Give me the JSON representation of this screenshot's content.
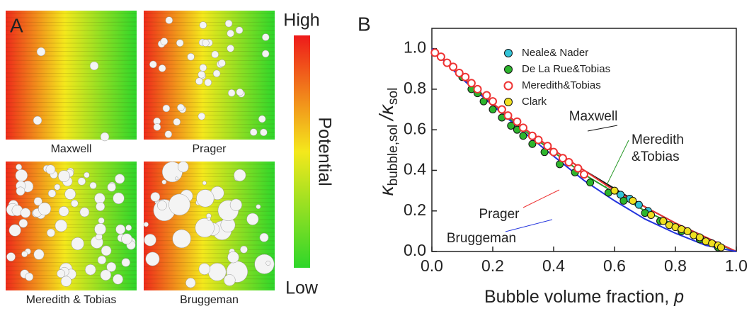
{
  "panel_a": {
    "label": "A",
    "maps": [
      "Maxwell",
      "Prager",
      "Meredith & Tobias",
      "Bruggeman"
    ],
    "colorbar": {
      "high": "High",
      "title": "Potential",
      "low": "Low"
    }
  },
  "chart_data": {
    "type": "scatter",
    "panel_label": "B",
    "xlabel": {
      "text": "Bubble volume fraction,",
      "symbol": "p"
    },
    "ylabel": {
      "symbol": "κ",
      "sub": "bubble,sol",
      "denominator": "/κ",
      "denominator_sub": "sol"
    },
    "xlim": [
      0,
      1
    ],
    "ylim": [
      0,
      1.1
    ],
    "xticks": [
      {
        "value": 0,
        "label": "0.0"
      },
      0.2,
      0.4,
      0.6,
      0.8,
      {
        "value": 1,
        "label": "1.0"
      }
    ],
    "yticks": [
      {
        "value": 0,
        "label": "0.0"
      },
      0.2,
      0.4,
      0.6,
      0.8,
      {
        "value": 1,
        "label": "1.0"
      }
    ],
    "series": [
      {
        "name": "Neale& Nader",
        "color": "#33c4d8",
        "marker": "filled",
        "x": [
          0.62,
          0.65,
          0.68,
          0.71
        ],
        "values": [
          0.28,
          0.26,
          0.23,
          0.2
        ]
      },
      {
        "name": "De La Rue&Tobias",
        "color": "#2db52d",
        "marker": "filled",
        "x": [
          0.03,
          0.07,
          0.1,
          0.13,
          0.15,
          0.17,
          0.2,
          0.23,
          0.26,
          0.28,
          0.3,
          0.33,
          0.37,
          0.42,
          0.47,
          0.52,
          0.58,
          0.63,
          0.7,
          0.75,
          0.82,
          0.88,
          0.94
        ],
        "values": [
          0.96,
          0.91,
          0.86,
          0.8,
          0.78,
          0.74,
          0.7,
          0.66,
          0.62,
          0.6,
          0.57,
          0.53,
          0.49,
          0.43,
          0.39,
          0.34,
          0.29,
          0.25,
          0.19,
          0.15,
          0.1,
          0.06,
          0.02
        ]
      },
      {
        "name": "Meredith&Tobias",
        "color": "#ee3333",
        "marker": "open",
        "x": [
          0.01,
          0.03,
          0.05,
          0.07,
          0.09,
          0.11,
          0.13,
          0.15,
          0.18,
          0.2,
          0.23,
          0.25,
          0.28,
          0.3,
          0.33,
          0.35,
          0.38,
          0.4,
          0.43,
          0.45,
          0.48,
          0.5
        ],
        "values": [
          0.98,
          0.96,
          0.93,
          0.91,
          0.88,
          0.86,
          0.83,
          0.8,
          0.77,
          0.74,
          0.7,
          0.67,
          0.64,
          0.61,
          0.57,
          0.55,
          0.52,
          0.49,
          0.46,
          0.44,
          0.41,
          0.38
        ]
      },
      {
        "name": "Clark",
        "color": "#f0e020",
        "marker": "filled",
        "x": [
          0.6,
          0.66,
          0.72,
          0.76,
          0.78,
          0.8,
          0.82,
          0.84,
          0.86,
          0.88,
          0.9,
          0.92,
          0.94,
          0.95
        ],
        "values": [
          0.3,
          0.25,
          0.18,
          0.15,
          0.13,
          0.12,
          0.11,
          0.1,
          0.08,
          0.07,
          0.05,
          0.04,
          0.03,
          0.02
        ]
      }
    ],
    "curves": [
      {
        "label": [
          "Maxwell"
        ],
        "color": "#111111",
        "x": [
          0,
          0.1,
          0.2,
          0.3,
          0.4,
          0.5,
          0.6,
          0.7,
          0.8,
          0.9,
          1
        ],
        "values": [
          1,
          0.86,
          0.73,
          0.61,
          0.5,
          0.4,
          0.31,
          0.22,
          0.14,
          0.07,
          0
        ]
      },
      {
        "label": [
          "Meredith",
          "&Tobias"
        ],
        "color": "#2a9a2a",
        "x": [
          0,
          0.1,
          0.2,
          0.3,
          0.4,
          0.5,
          0.6,
          0.7,
          0.8,
          0.9,
          1
        ],
        "values": [
          1,
          0.86,
          0.72,
          0.6,
          0.49,
          0.38,
          0.29,
          0.2,
          0.13,
          0.06,
          0
        ]
      },
      {
        "label": [
          "Prager"
        ],
        "color": "#ee3333",
        "x": [
          0,
          0.1,
          0.2,
          0.3,
          0.4,
          0.5,
          0.6,
          0.7,
          0.8,
          0.9,
          1
        ],
        "values": [
          1,
          0.86,
          0.73,
          0.61,
          0.5,
          0.4,
          0.3,
          0.22,
          0.14,
          0.07,
          0
        ]
      },
      {
        "label": [
          "Bruggeman"
        ],
        "color": "#2233dd",
        "x": [
          0,
          0.1,
          0.2,
          0.3,
          0.4,
          0.5,
          0.6,
          0.7,
          0.8,
          0.9,
          1
        ],
        "values": [
          1,
          0.85,
          0.72,
          0.59,
          0.47,
          0.35,
          0.25,
          0.16,
          0.09,
          0.03,
          0
        ]
      }
    ]
  }
}
